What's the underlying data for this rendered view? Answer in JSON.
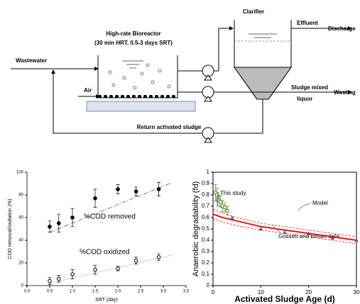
{
  "diagram": {
    "clarifier": "Clarifier",
    "reactor_title": "High-rate Bioreactor",
    "reactor_subtitle": "(30 min HRT, 0.5-3 days SRT)",
    "wastewater": "Wastewater",
    "air": "Air",
    "effluent": "Effluent",
    "discharge": "Discharge",
    "sludge_mixed_liquor": [
      "Sludge mixed",
      "liquor"
    ],
    "wasting": "Wasting",
    "return": "Return activated sludge"
  },
  "chart_data": [
    {
      "type": "scatter",
      "xlabel": "SRT (day)",
      "ylabel": "COD removal/oxidation (%)",
      "xlim": [
        0,
        3.5
      ],
      "ylim": [
        0,
        100
      ],
      "xticks": [
        {
          "value": 0,
          "label": "0.0"
        },
        0.5,
        {
          "value": 1,
          "label": "1.0"
        },
        1.5,
        {
          "value": 2,
          "label": "2.0"
        },
        2.5,
        {
          "value": 3,
          "label": "3.0"
        },
        3.5
      ],
      "yticks": [
        0,
        20,
        40,
        60,
        80,
        100
      ],
      "frame": false,
      "series": [
        {
          "name": "%COD removed",
          "color": "#000000",
          "marker": "filled-circle",
          "x": [
            0.5,
            0.7,
            1.0,
            1.5,
            2.0,
            2.4,
            2.9
          ],
          "values": [
            52,
            55,
            60,
            77,
            85,
            83,
            85
          ],
          "errors": [
            5,
            8,
            8,
            8,
            4,
            4,
            6
          ],
          "trend": {
            "x": [
              0.5,
              3.2
            ],
            "values": [
              47,
              91
            ]
          }
        },
        {
          "name": "%COD oxidized",
          "color": "#000000",
          "marker": "open-circle",
          "x": [
            0.5,
            0.7,
            1.0,
            1.5,
            2.0,
            2.4,
            2.9
          ],
          "values": [
            4,
            6,
            10,
            14,
            15,
            22,
            25
          ],
          "errors": [
            3,
            3,
            4,
            4,
            2,
            3,
            3
          ],
          "trend": {
            "x": [
              0.5,
              3.2
            ],
            "values": [
              2,
              27
            ]
          }
        }
      ]
    },
    {
      "type": "scatter",
      "xlabel": "Activated Sludge Age (d)",
      "ylabel": "Anaerobic degradability (fd)",
      "xlim": [
        0,
        30
      ],
      "ylim": [
        0,
        1
      ],
      "xticks": [
        0,
        10,
        20,
        30
      ],
      "yticks": [
        0,
        0.1,
        0.2,
        0.3,
        0.4,
        0.5,
        0.6,
        0.7,
        0.8,
        0.9,
        1
      ],
      "frame": true,
      "series": [
        {
          "name": "This study",
          "color": "#5a8a3a",
          "marker": "square",
          "x": [
            0.5,
            0.8,
            1,
            1.3,
            1.6,
            2,
            2.5,
            3
          ],
          "values": [
            0.82,
            0.8,
            0.76,
            0.75,
            0.74,
            0.7,
            0.69,
            0.66
          ],
          "errors": [
            0.07,
            0.06,
            0.06,
            0.05,
            0.05,
            0.05,
            0.04,
            0.04
          ]
        },
        {
          "name": "Gossett and Belser data",
          "color": "#4a6fc0",
          "marker": "triangle",
          "x": [
            4,
            10,
            15,
            20,
            25,
            30
          ],
          "values": [
            0.6,
            0.5,
            0.47,
            0.46,
            0.42,
            0.4
          ]
        },
        {
          "name": "Model",
          "color": "#e0191b",
          "marker": "line",
          "x": [
            0,
            2,
            5,
            10,
            15,
            20,
            25,
            30
          ],
          "values": [
            0.63,
            0.6,
            0.57,
            0.52,
            0.49,
            0.46,
            0.43,
            0.4
          ]
        },
        {
          "color": "#e0191b",
          "marker": "dashed",
          "x": [
            0,
            2,
            5,
            10,
            15,
            20,
            25,
            30
          ],
          "values": [
            0.67,
            0.64,
            0.6,
            0.55,
            0.52,
            0.49,
            0.46,
            0.43
          ]
        },
        {
          "color": "#e0191b",
          "marker": "dashed",
          "x": [
            0,
            2,
            5,
            10,
            15,
            20,
            25,
            30
          ],
          "values": [
            0.59,
            0.56,
            0.53,
            0.49,
            0.46,
            0.43,
            0.4,
            0.37
          ]
        }
      ]
    }
  ]
}
